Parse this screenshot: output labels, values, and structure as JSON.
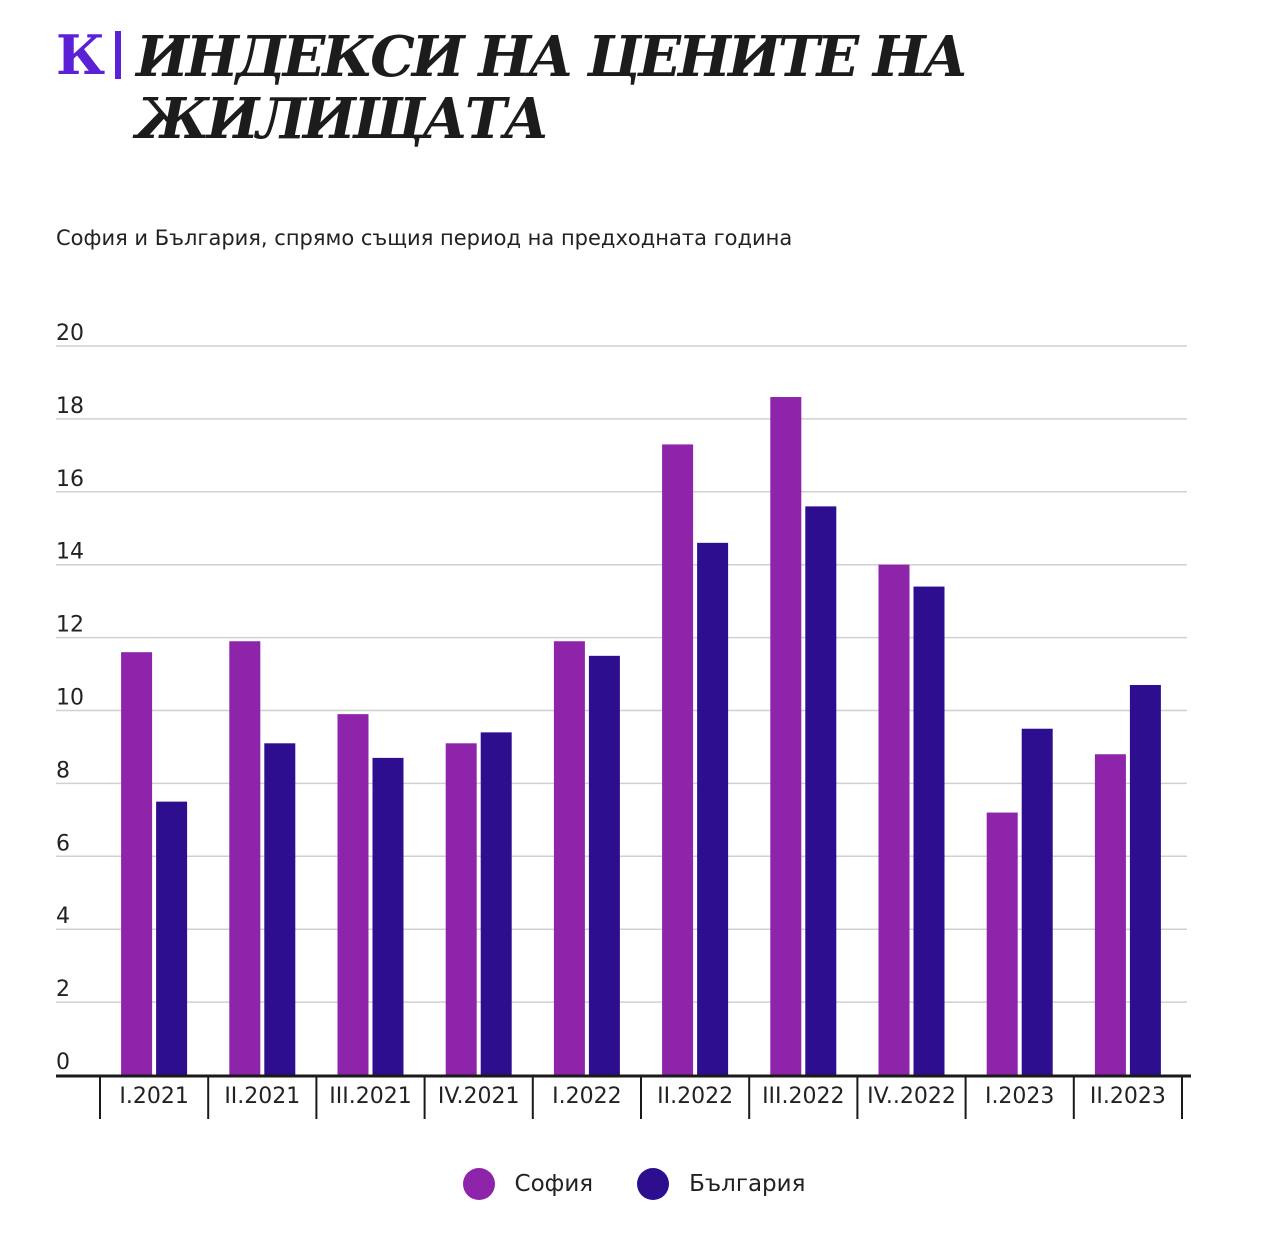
{
  "header": {
    "logo_letter": "К",
    "title": "ИНДЕКСИ НА ЦЕНИТЕ НА ЖИЛИЩАТА",
    "subtitle": "София и България, спрямо същия период на предходната година"
  },
  "colors": {
    "sofia": "#8e24aa",
    "bulgaria": "#2d0e8f",
    "accent": "#5b21d6"
  },
  "chart_data": {
    "type": "bar",
    "title": "ИНДЕКСИ НА ЦЕНИТЕ НА ЖИЛИЩАТА",
    "subtitle": "София и България, спрямо същия период на предходната година",
    "xlabel": "",
    "ylabel": "",
    "ylim": [
      0,
      20
    ],
    "yticks": [
      0,
      2,
      4,
      6,
      8,
      10,
      12,
      14,
      16,
      18,
      20
    ],
    "grid": true,
    "legend_position": "bottom-center",
    "categories": [
      "I.2021",
      "II.2021",
      "III.2021",
      "IV.2021",
      "I.2022",
      "II.2022",
      "III.2022",
      "IV..2022",
      "I.2023",
      "II.2023"
    ],
    "series": [
      {
        "name": "София",
        "color": "#8e24aa",
        "values": [
          11.6,
          11.9,
          9.9,
          9.1,
          11.9,
          17.3,
          18.6,
          14.0,
          7.2,
          8.8
        ]
      },
      {
        "name": "България",
        "color": "#2d0e8f",
        "values": [
          7.5,
          9.1,
          8.7,
          9.4,
          11.5,
          14.6,
          15.6,
          13.4,
          9.5,
          10.7
        ]
      }
    ]
  }
}
